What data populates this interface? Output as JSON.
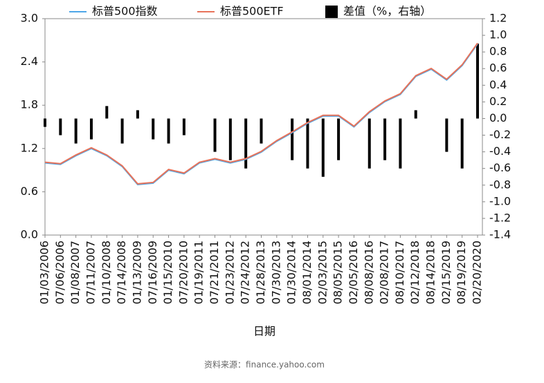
{
  "chart_data": {
    "type": "line",
    "x_label": "日期",
    "source": "资料来源：finance.yahoo.com",
    "categories": [
      "01/03/2006",
      "07/06/2006",
      "01/08/2007",
      "07/11/2007",
      "01/10/2008",
      "07/14/2008",
      "01/13/2009",
      "07/16/2009",
      "01/15/2010",
      "07/20/2010",
      "01/19/2011",
      "07/21/2011",
      "01/23/2012",
      "07/24/2012",
      "01/28/2013",
      "07/30/2013",
      "01/30/2014",
      "08/01/2014",
      "02/03/2015",
      "08/05/2015",
      "02/05/2016",
      "08/08/2016",
      "02/08/2017",
      "08/10/2017",
      "02/12/2018",
      "08/14/2018",
      "02/15/2019",
      "08/19/2019",
      "02/20/2020"
    ],
    "series": [
      {
        "name": "标普500指数",
        "color": "#4da6e8",
        "values": [
          1.0,
          0.98,
          1.1,
          1.2,
          1.1,
          0.95,
          0.7,
          0.72,
          0.9,
          0.85,
          1.0,
          1.05,
          1.0,
          1.05,
          1.15,
          1.3,
          1.42,
          1.55,
          1.65,
          1.65,
          1.5,
          1.7,
          1.85,
          1.95,
          2.2,
          2.3,
          2.15,
          2.35,
          2.65
        ]
      },
      {
        "name": "标普500ETF",
        "color": "#e8735a",
        "values": [
          1.01,
          0.99,
          1.11,
          1.21,
          1.11,
          0.96,
          0.71,
          0.73,
          0.91,
          0.86,
          1.01,
          1.06,
          1.01,
          1.06,
          1.16,
          1.31,
          1.43,
          1.56,
          1.66,
          1.66,
          1.51,
          1.71,
          1.86,
          1.96,
          2.21,
          2.31,
          2.16,
          2.36,
          2.66
        ]
      },
      {
        "name": "差值（%，右轴）",
        "color": "#000000",
        "type": "bar",
        "axis": "y2",
        "values": [
          -0.1,
          -0.2,
          -0.3,
          -0.25,
          0.15,
          -0.3,
          0.1,
          -0.25,
          -0.3,
          -0.2,
          0,
          -0.4,
          -0.5,
          -0.6,
          -0.3,
          0,
          -0.5,
          -0.6,
          -0.7,
          -0.5,
          0,
          -0.6,
          -0.5,
          -0.6,
          0.1,
          0,
          -0.4,
          -0.6,
          0.9
        ]
      }
    ],
    "ylim": [
      0,
      3.0
    ],
    "yticks": [
      {
        "value": 0,
        "label": "0.0"
      },
      0.6,
      1.2,
      1.8,
      2.4,
      {
        "value": 3,
        "label": "3.0"
      }
    ],
    "y2lim": [
      -1.4,
      1.2
    ],
    "y2ticks": [
      -1.4,
      -1.2,
      {
        "value": -1,
        "label": "-1.0"
      },
      -0.8,
      -0.6,
      -0.4,
      -0.2,
      {
        "value": 0,
        "label": "0.0"
      },
      0.2,
      0.4,
      0.6,
      0.8,
      {
        "value": 1,
        "label": "1.0"
      },
      1.2
    ]
  }
}
